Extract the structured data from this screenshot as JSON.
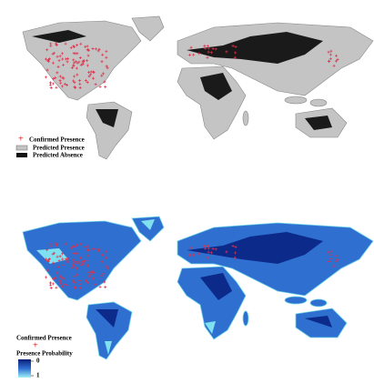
{
  "top_legend": {
    "items": [
      "Confirmed Presence",
      "Predicted Presence",
      "Predicted Absence"
    ]
  },
  "bottom_legend": {
    "items": [
      "Confirmed Presence",
      "Presence Probability"
    ],
    "scale_ticks": [
      0,
      1
    ]
  }
}
